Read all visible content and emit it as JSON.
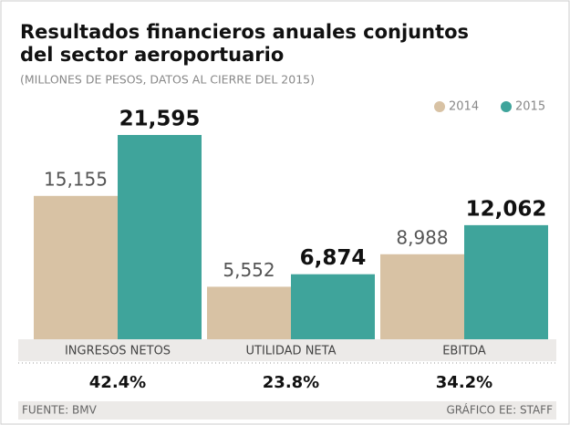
{
  "chart_data": {
    "type": "bar",
    "title": "Resultados financieros anuales conjuntos",
    "title_line2": "del sector aeroportuario",
    "subtitle": "(MILLONES DE PESOS, DATOS AL CIERRE DEL 2015)",
    "categories": [
      "INGRESOS NETOS",
      "UTILIDAD NETA",
      "EBITDA"
    ],
    "series": [
      {
        "name": "2014",
        "color": "#d8c2a4",
        "values": [
          15155,
          5552,
          8988
        ],
        "value_labels": [
          "15,155",
          "5,552",
          "8,988"
        ]
      },
      {
        "name": "2015",
        "color": "#3fa49b",
        "values": [
          21595,
          6874,
          12062
        ],
        "value_labels": [
          "21,595",
          "6,874",
          "12,062"
        ]
      }
    ],
    "growth_labels": [
      "42.4%",
      "23.8%",
      "34.2%"
    ],
    "source": "FUENTE: BMV",
    "credit": "GRÁFICO EE: STAFF"
  }
}
